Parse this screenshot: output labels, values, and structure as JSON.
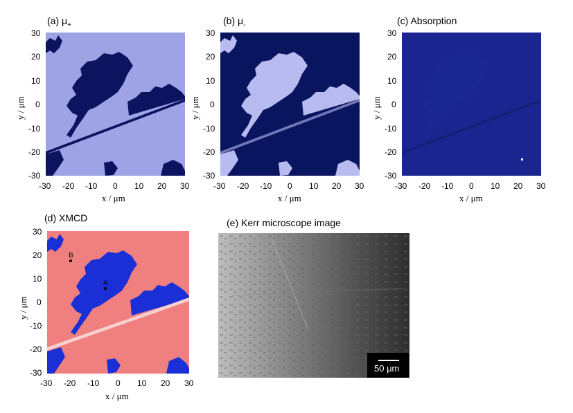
{
  "panels": {
    "a": {
      "title_prefix": "(a) μ",
      "title_sub": "+"
    },
    "b": {
      "title_prefix": "(b) μ",
      "title_sub": "-"
    },
    "c": {
      "title": "(c) Absorption"
    },
    "d": {
      "title": "(d) XMCD"
    },
    "e": {
      "title": "(e) Kerr microscope image"
    }
  },
  "axes": {
    "x_ticks": [
      "-30",
      "-20",
      "-10",
      "0",
      "10",
      "20",
      "30"
    ],
    "y_ticks": [
      "30",
      "20",
      "10",
      "0",
      "-10",
      "-20",
      "-30"
    ],
    "x_label": "x / μm",
    "y_label": "y / μm"
  },
  "markers": {
    "a_label": "A",
    "b_label": "B"
  },
  "kerr": {
    "scale_bar_label": "50 μm"
  },
  "colors": {
    "mu_plus_light": "#9ea3e6",
    "mu_plus_dark": "#0c1460",
    "mu_minus_dark": "#0a1560",
    "mu_minus_light": "#b8bbf0",
    "absorption": "#1a2590",
    "xmcd_red": "#f08080",
    "xmcd_blue": "#1a2fd6"
  }
}
